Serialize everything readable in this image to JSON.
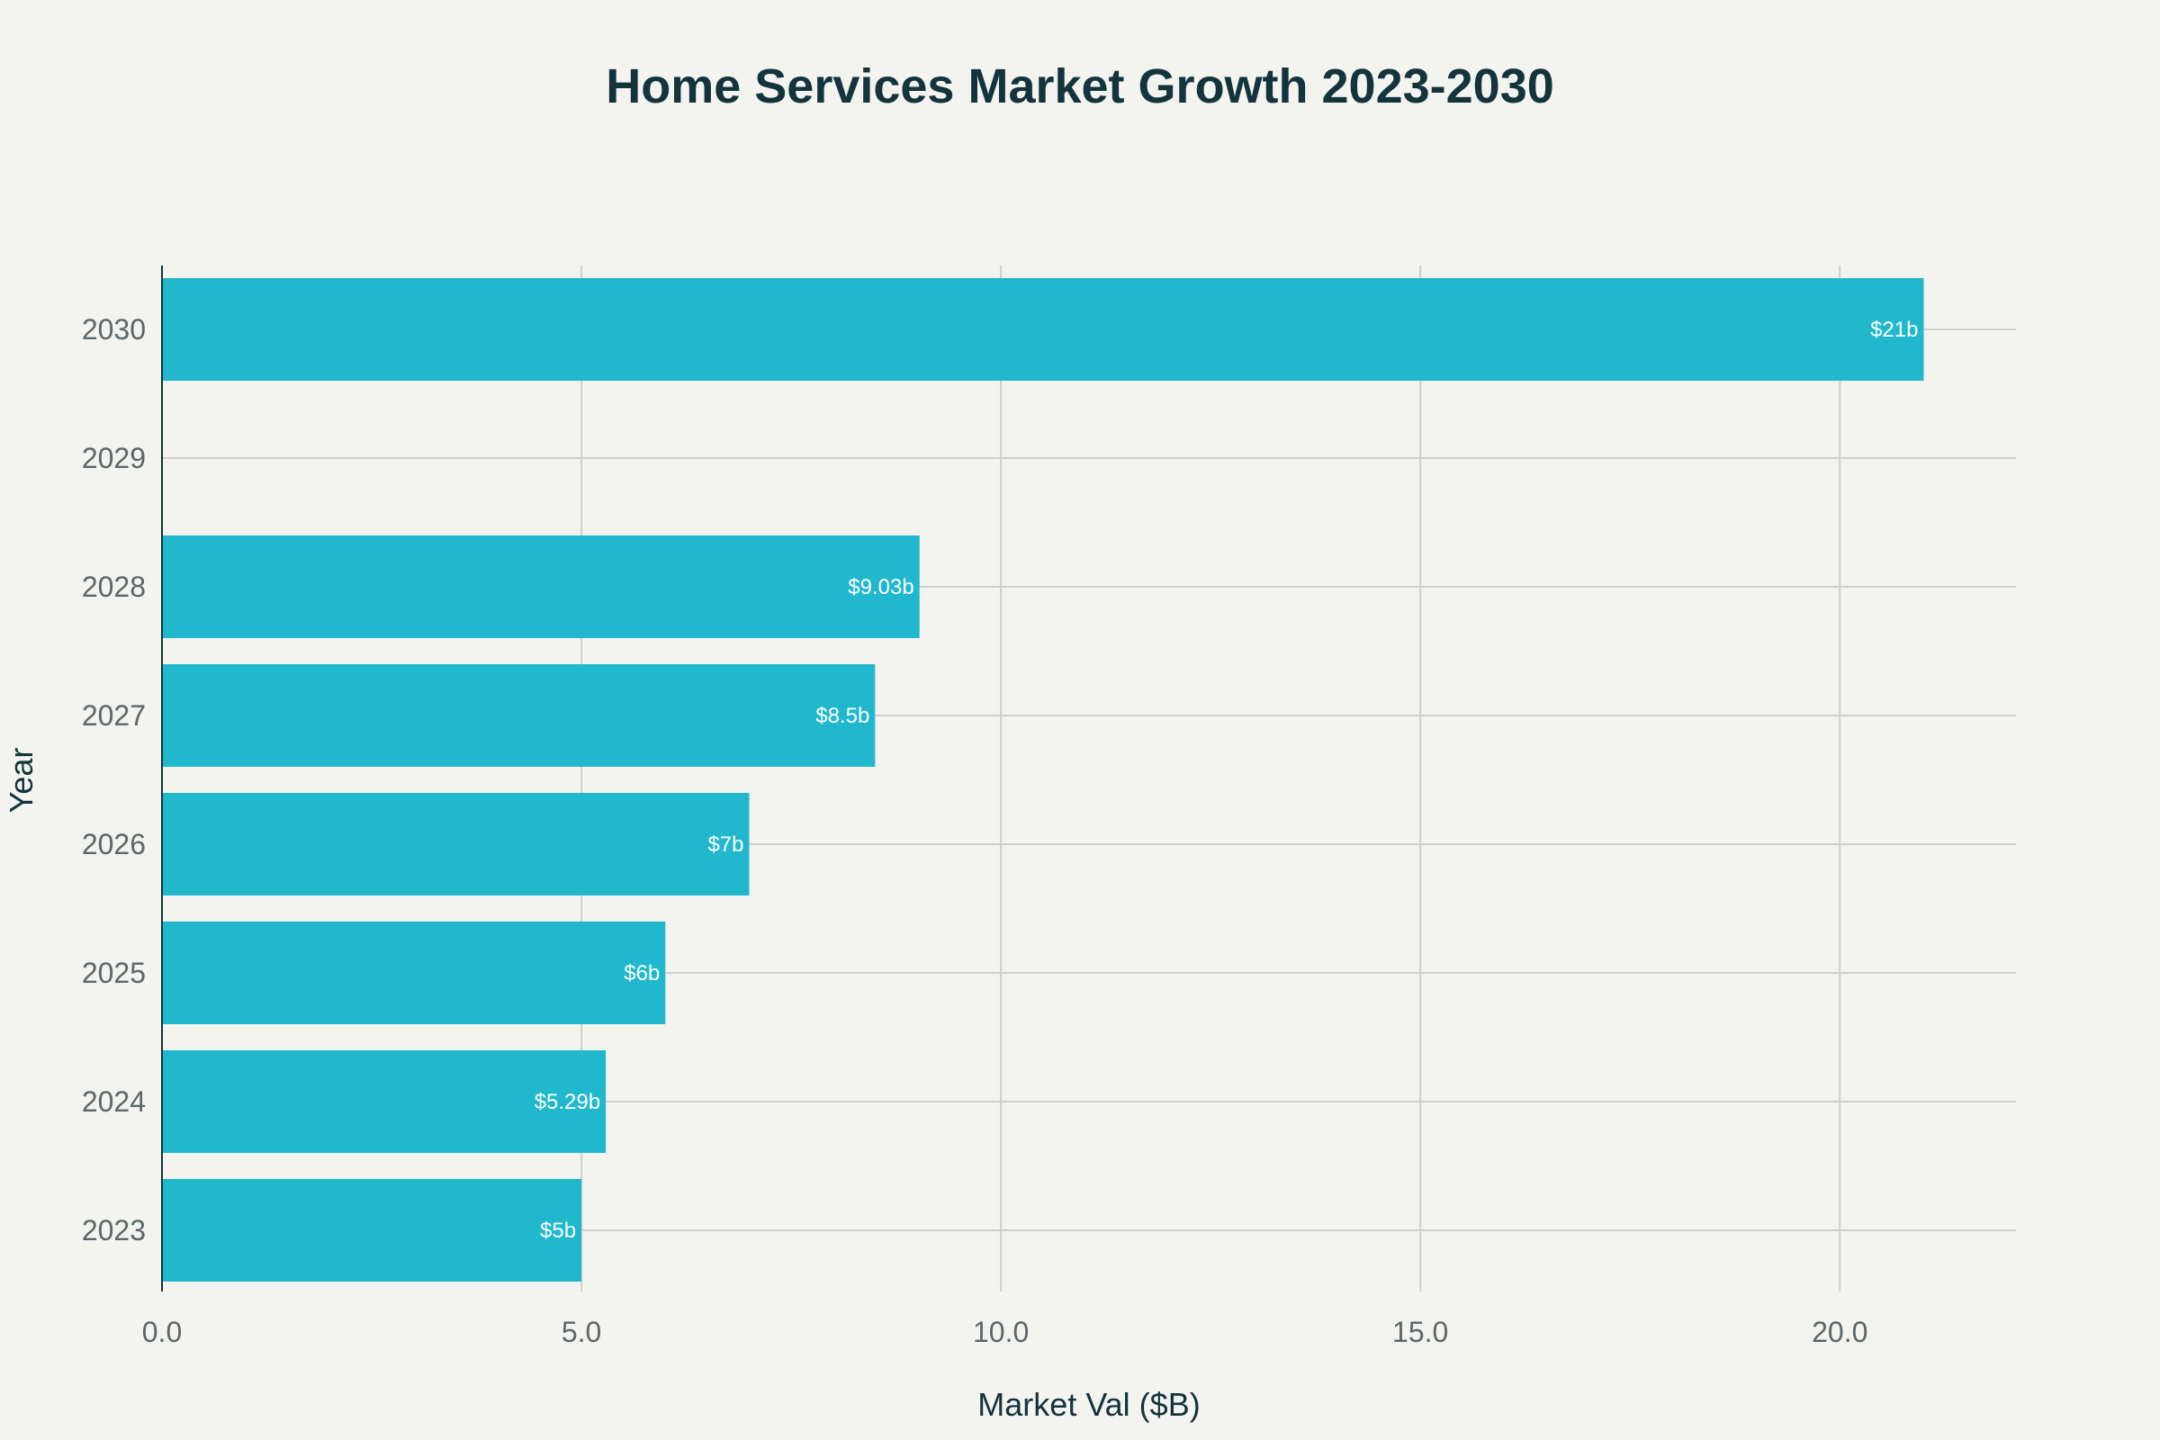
{
  "chart_data": {
    "type": "bar",
    "orientation": "horizontal",
    "title": "Home Services Market Growth 2023-2030",
    "xlabel": "Market Val ($B)",
    "ylabel": "Year",
    "xlim": [
      0,
      22.1
    ],
    "x_ticks": [
      0,
      5,
      10,
      15,
      20
    ],
    "x_tick_labels": [
      "0.0",
      "5.0",
      "10.0",
      "15.0",
      "20.0"
    ],
    "categories": [
      "2023",
      "2024",
      "2025",
      "2026",
      "2027",
      "2028",
      "2029",
      "2030"
    ],
    "values": [
      5,
      5.29,
      6,
      7,
      8.5,
      9.03,
      null,
      21
    ],
    "data_labels": [
      "$5b",
      "$5.29b",
      "$6b",
      "$7b",
      "$8.5b",
      "$9.03b",
      "",
      "$21b"
    ],
    "bar_color": "#21b8cd",
    "grid": true,
    "legend": "none"
  }
}
